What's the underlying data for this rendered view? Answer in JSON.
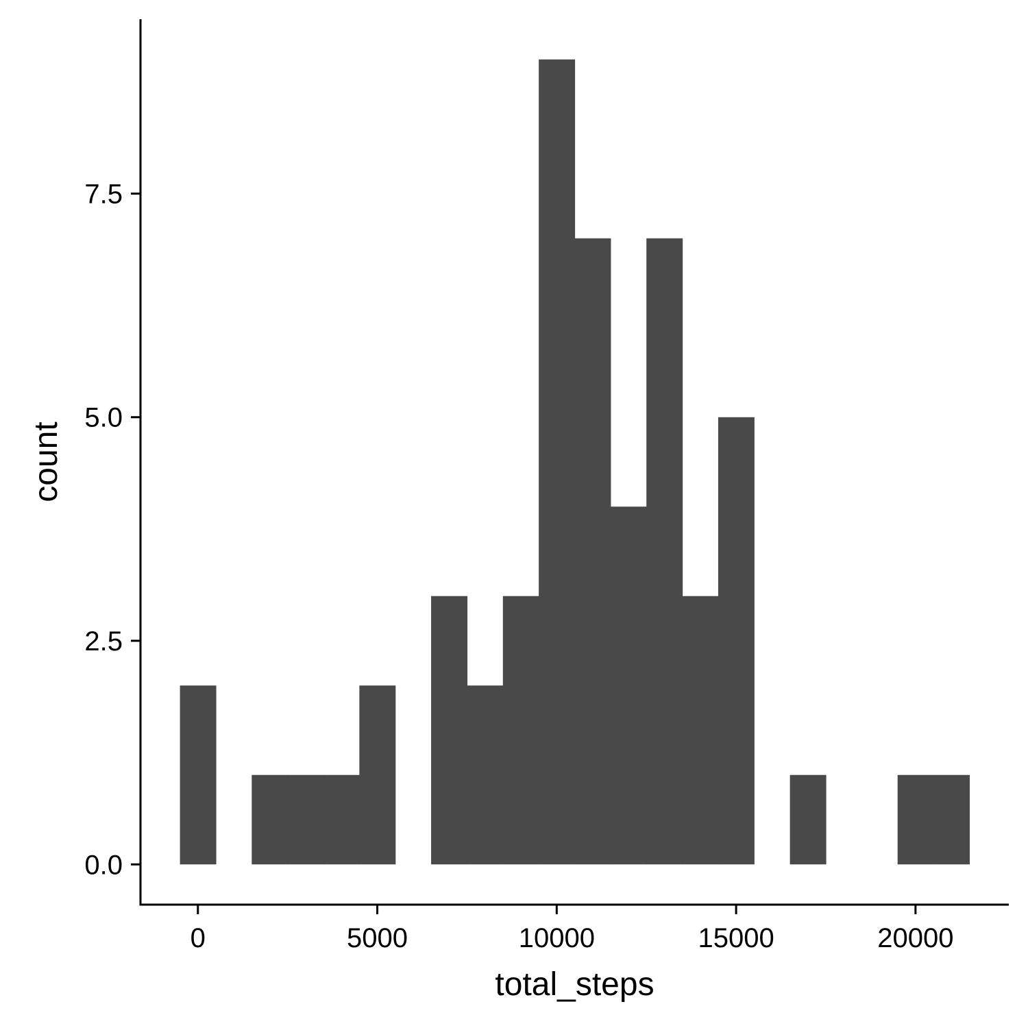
{
  "chart_data": {
    "type": "bar",
    "subtype": "histogram",
    "xlabel": "total_steps",
    "ylabel": "count",
    "bin_width": 1000,
    "bin_centers": [
      0,
      1000,
      2000,
      3000,
      4000,
      5000,
      6000,
      7000,
      8000,
      9000,
      10000,
      11000,
      12000,
      13000,
      14000,
      15000,
      16000,
      17000,
      18000,
      19000,
      20000,
      21000
    ],
    "values": [
      2,
      0,
      1,
      1,
      1,
      2,
      0,
      3,
      2,
      3,
      9,
      7,
      4,
      7,
      3,
      5,
      0,
      1,
      0,
      0,
      1,
      1
    ],
    "xlim": [
      -1600,
      22600
    ],
    "ylim": [
      -0.45,
      9.45
    ],
    "x_ticks": [
      0,
      5000,
      10000,
      15000,
      20000
    ],
    "x_tick_labels": [
      "0",
      "5000",
      "10000",
      "15000",
      "20000"
    ],
    "y_ticks": [
      0,
      2.5,
      5,
      7.5
    ],
    "y_tick_labels": [
      "0.0",
      "2.5",
      "5.0",
      "7.5"
    ],
    "grid": false,
    "legend": "none",
    "bar_color": "#494949"
  }
}
